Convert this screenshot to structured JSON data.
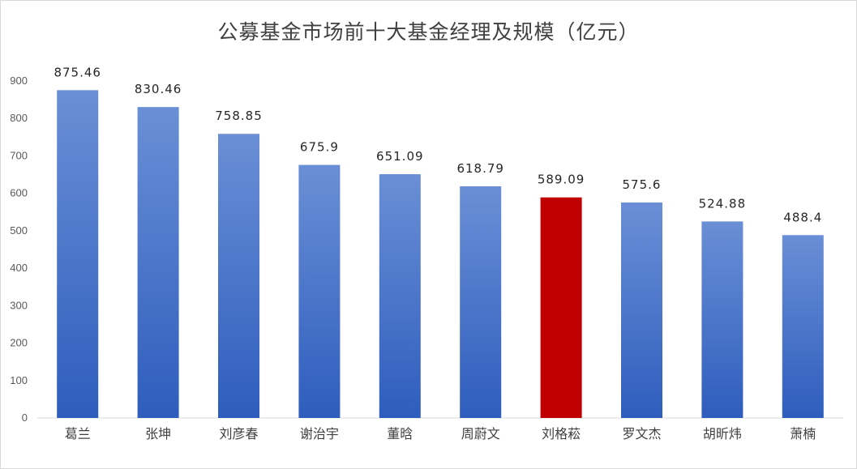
{
  "chart_data": {
    "type": "bar",
    "title": "公募基金市场前十大基金经理及规模（亿元）",
    "xlabel": "",
    "ylabel": "",
    "categories": [
      "葛兰",
      "张坤",
      "刘彦春",
      "谢治宇",
      "董晗",
      "周蔚文",
      "刘格菘",
      "罗文杰",
      "胡昕炜",
      "萧楠"
    ],
    "values": [
      875.46,
      830.46,
      758.85,
      675.9,
      651.09,
      618.79,
      589.09,
      575.6,
      524.88,
      488.4
    ],
    "value_labels": [
      "875.46",
      "830.46",
      "758.85",
      "675.9",
      "651.09",
      "618.79",
      "589.09",
      "575.6",
      "524.88",
      "488.4"
    ],
    "highlight_category": "刘格菘",
    "ylim": [
      0,
      900
    ],
    "yticks": [
      0,
      100,
      200,
      300,
      400,
      500,
      600,
      700,
      800,
      900
    ],
    "grid": false,
    "legend": "none",
    "colors": {
      "bar_top": "#6a8fd6",
      "bar_bottom": "#2e5dbd",
      "highlight": "#c00000",
      "axis": "#d9d9d9"
    }
  }
}
